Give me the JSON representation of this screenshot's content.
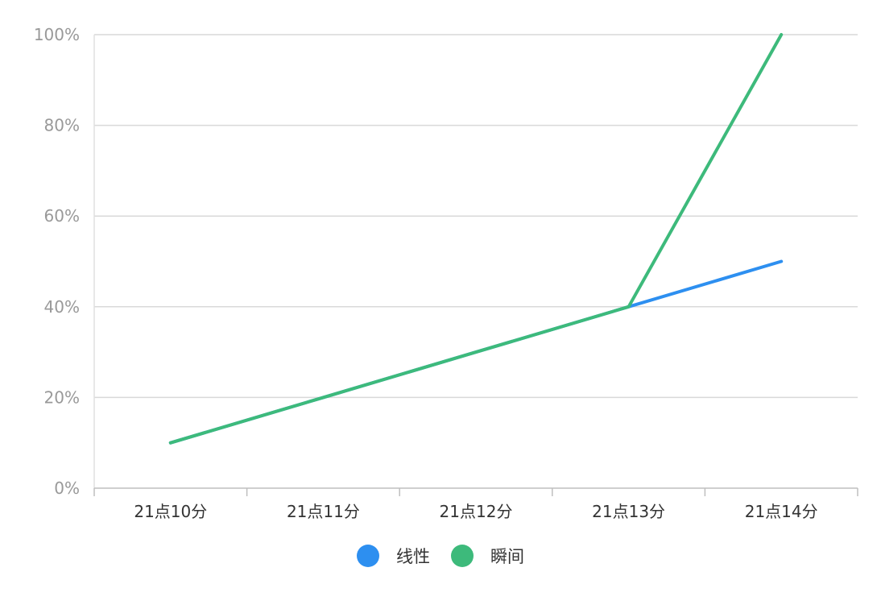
{
  "chart_data": {
    "type": "line",
    "categories": [
      "21点10分",
      "21点11分",
      "21点12分",
      "21点13分",
      "21点14分"
    ],
    "y_ticks": [
      "0%",
      "20%",
      "40%",
      "60%",
      "80%",
      "100%"
    ],
    "ylim": [
      0,
      100
    ],
    "grid": true,
    "legend_position": "bottom-center",
    "series": [
      {
        "name": "线性",
        "color": "#2d8ff0",
        "values": [
          10,
          20,
          30,
          40,
          50
        ]
      },
      {
        "name": "瞬间",
        "color": "#3dba7b",
        "values": [
          10,
          20,
          30,
          40,
          100
        ]
      }
    ]
  }
}
